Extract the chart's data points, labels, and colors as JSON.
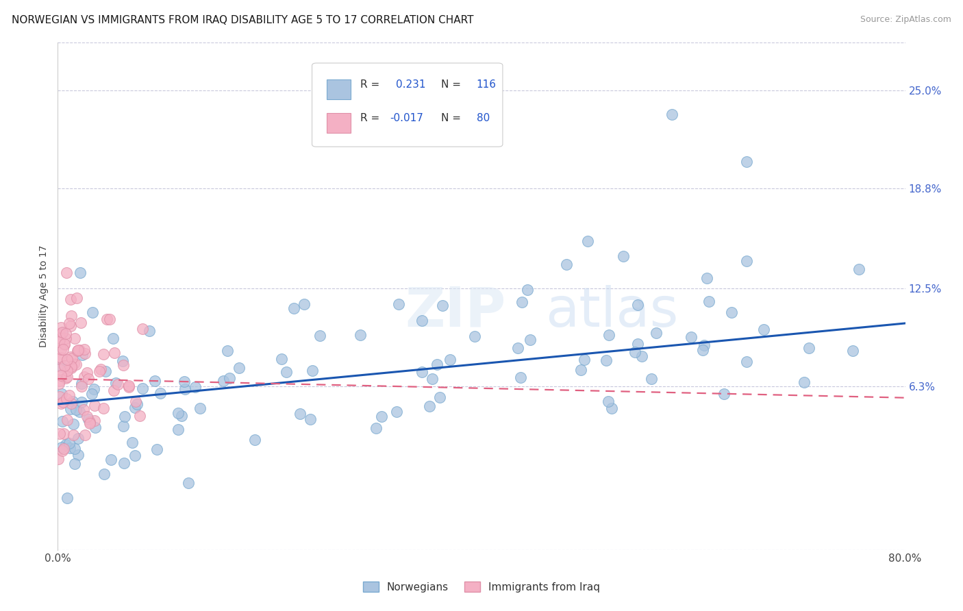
{
  "title": "NORWEGIAN VS IMMIGRANTS FROM IRAQ DISABILITY AGE 5 TO 17 CORRELATION CHART",
  "source": "Source: ZipAtlas.com",
  "ylabel": "Disability Age 5 to 17",
  "ytick_values": [
    6.3,
    12.5,
    18.8,
    25.0
  ],
  "ytick_labels": [
    "6.3%",
    "12.5%",
    "18.8%",
    "25.0%"
  ],
  "xmin": 0.0,
  "xmax": 80.0,
  "ymin": -4.0,
  "ymax": 28.0,
  "norwegian_R": 0.231,
  "norwegian_N": 116,
  "iraq_R": -0.017,
  "iraq_N": 80,
  "norwegian_color": "#aac4e0",
  "norwegian_edge_color": "#7aaad0",
  "iraq_color": "#f4b0c4",
  "iraq_edge_color": "#e090a8",
  "norwegian_line_color": "#1a56b0",
  "iraq_line_color": "#e06080",
  "legend_label_norwegian": "Norwegians",
  "legend_label_iraq": "Immigrants from Iraq",
  "title_fontsize": 11,
  "axis_label_fontsize": 10,
  "tick_fontsize": 11,
  "right_tick_color": "#4466cc",
  "nor_line_y0": 5.2,
  "nor_line_y1": 10.3,
  "irq_line_y0": 6.8,
  "irq_line_y1": 5.6
}
